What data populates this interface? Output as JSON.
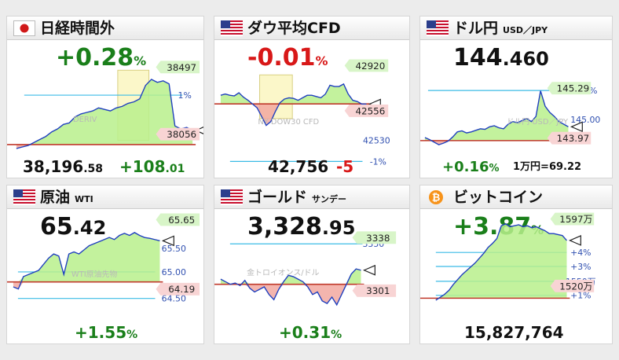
{
  "colors": {
    "up": "#1a7f1a",
    "down": "#d81818",
    "line": "#1f3fbf",
    "area_up": "#b8f08c",
    "area_down": "#f2a8a0",
    "baseline": "#c0392b",
    "pct_line": "#3bbbe6",
    "tag_green": "#d8f5c8",
    "tag_pink": "#f8d4d4"
  },
  "cards": [
    {
      "title": "日経時間外",
      "sub": "",
      "flag": "japan-flag-icon",
      "change_main": "+0.28",
      "change_unit": "%",
      "change_dir": "up",
      "price_main": "38,196",
      "price_dec": ".58",
      "price_change_main": "+108",
      "price_change_dec": ".01",
      "watermark": "DERIV",
      "tags": [
        "38497",
        "38056"
      ],
      "pct_labels": [
        "1%"
      ]
    },
    {
      "title": "ダウ平均CFD",
      "sub": "",
      "flag": "us-flag-icon",
      "change_main": "-0.01",
      "change_unit": "%",
      "change_dir": "down",
      "price_main": "42,756",
      "price_change_main": "-5",
      "watermark": "NY DOW30 CFD",
      "tags": [
        "42920",
        "42556"
      ],
      "pct_labels": [
        "-1%",
        "42530"
      ]
    },
    {
      "title": "ドル円",
      "sub": "USD／JPY",
      "flag": "us-flag-icon",
      "price_main": "144",
      "price_dec": ".460",
      "change_main": "+0.16",
      "change_unit": "%",
      "change_dir": "up",
      "extra": "1万円=69.22",
      "watermark": "ドル円 USD／JPY",
      "tags": [
        "145.29",
        "143.97"
      ],
      "pct_labels": [
        "+1%",
        "145.00"
      ]
    },
    {
      "title": "原油",
      "sub": "WTI",
      "flag": "us-flag-icon",
      "price_main": "65",
      "price_dec": ".42",
      "change_main": "+1.55",
      "change_unit": "%",
      "change_dir": "up",
      "watermark": "WTI原油先物",
      "tags": [
        "65.65",
        "64.19"
      ],
      "pct_labels": [
        "65.50",
        "65.00",
        "64.50"
      ]
    },
    {
      "title": "ゴールド",
      "sub": "サンデー",
      "flag": "us-flag-icon",
      "price_main": "3,328",
      "price_dec": ".95",
      "change_main": "+0.31",
      "change_unit": "%",
      "change_dir": "up",
      "watermark": "金トロイオンス/ドル",
      "tags": [
        "3338",
        "3301"
      ],
      "pct_labels": [
        "3350"
      ]
    },
    {
      "title": "ビットコイン",
      "sub": "",
      "flag": "bitcoin-icon",
      "change_main": "+3.87",
      "change_unit": "%",
      "change_dir": "up",
      "price_main": "15,827,764",
      "tags": [
        "1597万",
        "1520万"
      ],
      "pct_labels": [
        "+4%",
        "+3%",
        "1550万",
        "+1%"
      ]
    }
  ],
  "chart_data": [
    {
      "type": "area",
      "title": "日経時間外",
      "series": [
        {
          "values": [
            38030,
            38040,
            38050,
            38070,
            38090,
            38110,
            38140,
            38160,
            38190,
            38200,
            38240,
            38260,
            38270,
            38280,
            38300,
            38290,
            38280,
            38300,
            38310,
            38330,
            38340,
            38360,
            38450,
            38490,
            38470,
            38480,
            38460,
            38180,
            38160,
            38170,
            38150
          ]
        }
      ],
      "reference": [
        38056,
        38497
      ]
    },
    {
      "type": "area",
      "title": "ダウ平均CFD",
      "series": [
        {
          "values": [
            42830,
            42840,
            42830,
            42825,
            42850,
            42815,
            42790,
            42760,
            42730,
            42660,
            42590,
            42620,
            42700,
            42770,
            42800,
            42810,
            42805,
            42790,
            42810,
            42830,
            42830,
            42820,
            42810,
            42840,
            42910,
            42900,
            42900,
            42920,
            42840,
            42790,
            42780,
            42760,
            42760
          ]
        }
      ],
      "reference": [
        42761,
        42920,
        42556
      ]
    },
    {
      "type": "area",
      "title": "ドル円",
      "series": [
        {
          "values": [
            144.29,
            144.25,
            144.2,
            144.15,
            144.18,
            144.22,
            144.3,
            144.4,
            144.42,
            144.38,
            144.4,
            144.43,
            144.46,
            144.45,
            144.5,
            144.52,
            144.48,
            144.46,
            144.55,
            144.6,
            144.58,
            144.62,
            144.66,
            144.6,
            144.7,
            145.2,
            144.9,
            144.78,
            144.7,
            144.6,
            144.55,
            144.5
          ]
        }
      ],
      "reference": [
        144.23,
        145.29,
        143.97
      ]
    },
    {
      "type": "area",
      "title": "原油",
      "series": [
        {
          "values": [
            64.3,
            64.25,
            64.55,
            64.6,
            64.65,
            64.7,
            64.85,
            65.0,
            65.1,
            65.05,
            64.6,
            65.1,
            65.15,
            65.1,
            65.2,
            65.3,
            65.35,
            65.4,
            65.45,
            65.5,
            65.45,
            65.55,
            65.6,
            65.55,
            65.62,
            65.55,
            65.5,
            65.48,
            65.45,
            65.42
          ]
        }
      ],
      "reference": [
        64.42,
        65.65,
        64.19
      ]
    },
    {
      "type": "area",
      "title": "ゴールド",
      "series": [
        {
          "values": [
            3322,
            3320,
            3318,
            3319,
            3317,
            3321,
            3315,
            3312,
            3314,
            3316,
            3310,
            3306,
            3314,
            3320,
            3325,
            3324,
            3322,
            3320,
            3316,
            3310,
            3312,
            3305,
            3303,
            3308,
            3302,
            3310,
            3318,
            3326,
            3330,
            3329
          ]
        }
      ],
      "reference": [
        3318,
        3338,
        3301,
        3350
      ]
    },
    {
      "type": "area",
      "title": "ビットコイン",
      "series": [
        {
          "values": [
            1522,
            1525,
            1528,
            1532,
            1538,
            1543,
            1548,
            1552,
            1556,
            1560,
            1565,
            1570,
            1576,
            1580,
            1585,
            1598,
            1600,
            1597,
            1598,
            1599,
            1597,
            1598,
            1596,
            1597,
            1595,
            1593,
            1590,
            1590,
            1589,
            1588,
            1583
          ]
        }
      ],
      "reference": [
        1524,
        1597,
        1520
      ]
    }
  ]
}
